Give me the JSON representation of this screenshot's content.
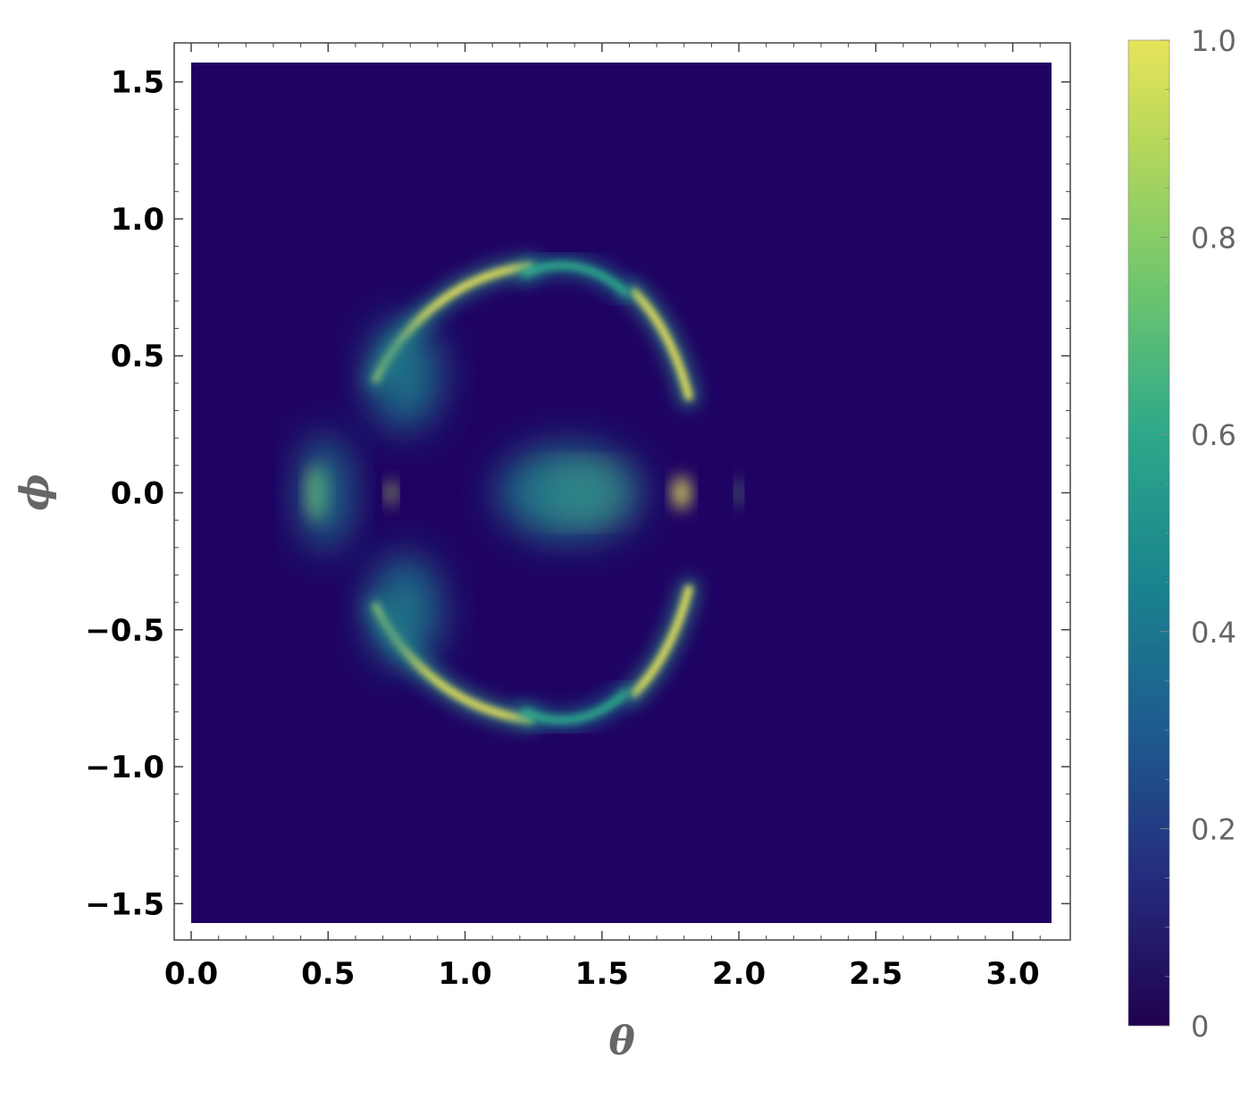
{
  "chart_data": {
    "type": "heatmap",
    "title": "",
    "xlabel": "θ",
    "ylabel": "ϕ",
    "xlim": [
      0.0,
      3.1416
    ],
    "ylim": [
      -1.5708,
      1.5708
    ],
    "x_ticks": [
      {
        "value": 0.0,
        "label": "0.0"
      },
      {
        "value": 0.5,
        "label": "0.5"
      },
      {
        "value": 1.0,
        "label": "1.0"
      },
      {
        "value": 1.5,
        "label": "1.5"
      },
      {
        "value": 2.0,
        "label": "2.0"
      },
      {
        "value": 2.5,
        "label": "2.5"
      },
      {
        "value": 3.0,
        "label": "3.0"
      }
    ],
    "y_ticks": [
      {
        "value": 1.5,
        "label": "1.5"
      },
      {
        "value": 1.0,
        "label": "1.0"
      },
      {
        "value": 0.5,
        "label": "0.5"
      },
      {
        "value": 0.0,
        "label": "0.0"
      },
      {
        "value": -0.5,
        "label": "−0.5"
      },
      {
        "value": -1.0,
        "label": "−1.0"
      },
      {
        "value": -1.5,
        "label": "−1.5"
      }
    ],
    "colorbar": {
      "range": [
        0,
        1
      ],
      "colormap": "viridis",
      "ticks": [
        {
          "value": 0.0,
          "label": "0"
        },
        {
          "value": 0.2,
          "label": "0.2"
        },
        {
          "value": 0.4,
          "label": "0.4"
        },
        {
          "value": 0.6,
          "label": "0.6"
        },
        {
          "value": 0.8,
          "label": "0.8"
        },
        {
          "value": 1.0,
          "label": "1.0"
        }
      ]
    },
    "features": [
      {
        "name": "central-blob",
        "shape": "ellipse",
        "theta": 1.42,
        "phi": 0.0,
        "theta_radius": 0.13,
        "phi_radius": 0.075,
        "peak": 1.0
      },
      {
        "name": "central-glow",
        "shape": "ellipse",
        "theta": 1.38,
        "phi": 0.0,
        "theta_radius": 0.26,
        "phi_radius": 0.17,
        "peak": 0.55
      },
      {
        "name": "left-lobe",
        "shape": "ellipse",
        "theta": 0.46,
        "phi": 0.0,
        "theta_radius": 0.035,
        "phi_radius": 0.1,
        "peak": 0.95
      },
      {
        "name": "left-lobe-glow",
        "shape": "ellipse",
        "theta": 0.49,
        "phi": 0.0,
        "theta_radius": 0.09,
        "phi_radius": 0.21,
        "peak": 0.45
      },
      {
        "name": "left-small-spot",
        "shape": "ellipse",
        "theta": 0.73,
        "phi": 0.0,
        "theta_radius": 0.016,
        "phi_radius": 0.045,
        "peak": 0.9
      },
      {
        "name": "right-spot",
        "shape": "ellipse",
        "theta": 1.79,
        "phi": 0.0,
        "theta_radius": 0.03,
        "phi_radius": 0.06,
        "peak": 1.0
      },
      {
        "name": "right-small-spot",
        "shape": "ellipse",
        "theta": 2.0,
        "phi": 0.0,
        "theta_radius": 0.01,
        "phi_radius": 0.05,
        "peak": 0.8
      },
      {
        "name": "upper-left-arc",
        "shape": "arc",
        "center_theta": 1.3,
        "center_phi": 0.0,
        "theta_radius": 0.72,
        "phi_radius": 0.83,
        "angle_start": 95,
        "angle_end": 150,
        "peak": 1.0
      },
      {
        "name": "upper-left-wing",
        "shape": "ellipse",
        "theta": 0.78,
        "phi": 0.43,
        "theta_radius": 0.13,
        "phi_radius": 0.2,
        "peak": 0.5
      },
      {
        "name": "upper-right-arc",
        "shape": "arc",
        "center_theta": 1.4,
        "center_phi": 0.0,
        "theta_radius": 0.46,
        "phi_radius": 0.83,
        "angle_start": 25,
        "angle_end": 62,
        "peak": 1.0
      },
      {
        "name": "upper-top-arc",
        "shape": "arc",
        "center_theta": 1.35,
        "center_phi": 0.0,
        "theta_radius": 0.5,
        "phi_radius": 0.83,
        "angle_start": 62,
        "angle_end": 105,
        "peak": 0.65
      },
      {
        "name": "lower-left-arc",
        "shape": "arc",
        "center_theta": 1.3,
        "center_phi": 0.0,
        "theta_radius": 0.72,
        "phi_radius": 0.83,
        "angle_start": -150,
        "angle_end": -95,
        "peak": 1.0
      },
      {
        "name": "lower-left-wing",
        "shape": "ellipse",
        "theta": 0.78,
        "phi": -0.43,
        "theta_radius": 0.13,
        "phi_radius": 0.2,
        "peak": 0.5
      },
      {
        "name": "lower-right-arc",
        "shape": "arc",
        "center_theta": 1.4,
        "center_phi": 0.0,
        "theta_radius": 0.46,
        "phi_radius": 0.83,
        "angle_start": -62,
        "angle_end": -25,
        "peak": 1.0
      },
      {
        "name": "lower-bottom-arc",
        "shape": "arc",
        "center_theta": 1.35,
        "center_phi": 0.0,
        "theta_radius": 0.5,
        "phi_radius": 0.83,
        "angle_start": -105,
        "angle_end": -62,
        "peak": 0.65
      }
    ],
    "grid": false,
    "legend": "colorbar-right"
  }
}
